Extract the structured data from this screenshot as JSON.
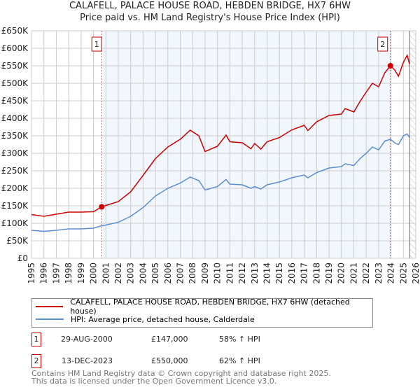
{
  "title": "CALAFELL, PALACE HOUSE ROAD, HEBDEN BRIDGE, HX7 6HW",
  "subtitle": "Price paid vs. HM Land Registry's House Price Index (HPI)",
  "chart_data": {
    "type": "line",
    "xlim": [
      1995,
      2026
    ],
    "ylim": [
      0,
      650000
    ],
    "y_ticks": [
      0,
      50000,
      100000,
      150000,
      200000,
      250000,
      300000,
      350000,
      400000,
      450000,
      500000,
      550000,
      600000,
      650000
    ],
    "y_tick_labels": [
      "£0",
      "£50K",
      "£100K",
      "£150K",
      "£200K",
      "£250K",
      "£300K",
      "£350K",
      "£400K",
      "£450K",
      "£500K",
      "£550K",
      "£600K",
      "£650K"
    ],
    "x_tick_labels": [
      "1995",
      "1996",
      "1997",
      "1998",
      "1999",
      "2000",
      "2001",
      "2002",
      "2003",
      "2004",
      "2005",
      "2006",
      "2007",
      "2008",
      "2009",
      "2010",
      "2011",
      "2012",
      "2013",
      "2014",
      "2015",
      "2016",
      "2017",
      "2018",
      "2019",
      "2020",
      "2021",
      "2022",
      "2023",
      "2024",
      "2025",
      "2026"
    ],
    "grid": true,
    "shaded_range": [
      2000.66,
      2024
    ],
    "hatched_from": 2025.5,
    "series": [
      {
        "name": "CALAFELL, PALACE HOUSE ROAD, HEBDEN BRIDGE, HX7 6HW (detached house)",
        "color": "#cc0000",
        "x": [
          1995,
          1996,
          1997,
          1998,
          1999,
          2000,
          2000.66,
          2001,
          2002,
          2003,
          2004,
          2005,
          2006,
          2007,
          2007.8,
          2008.5,
          2009,
          2010,
          2010.7,
          2011,
          2012,
          2012.7,
          2013,
          2013.5,
          2014,
          2015,
          2016,
          2017,
          2017.3,
          2018,
          2019,
          2020,
          2020.3,
          2021,
          2021.5,
          2022,
          2022.5,
          2023,
          2023.5,
          2023.95,
          2024.3,
          2024.6,
          2025,
          2025.3,
          2025.5
        ],
        "y": [
          125000,
          120000,
          126000,
          132000,
          132000,
          133000,
          147000,
          151000,
          162000,
          190000,
          237000,
          285000,
          318000,
          340000,
          366000,
          350000,
          305000,
          320000,
          352000,
          333000,
          330000,
          313000,
          328000,
          312000,
          333000,
          345000,
          367000,
          380000,
          365000,
          390000,
          408000,
          412000,
          428000,
          418000,
          448000,
          475000,
          500000,
          490000,
          530000,
          550000,
          538000,
          520000,
          560000,
          580000,
          555000
        ]
      },
      {
        "name": "HPI: Average price, detached house, Calderdale",
        "color": "#5b8fd0",
        "x": [
          1995,
          1996,
          1997,
          1998,
          1999,
          2000,
          2000.66,
          2001,
          2002,
          2003,
          2004,
          2005,
          2006,
          2007,
          2007.8,
          2008.5,
          2009,
          2010,
          2010.7,
          2011,
          2012,
          2012.7,
          2013,
          2013.5,
          2014,
          2015,
          2016,
          2017,
          2017.3,
          2018,
          2019,
          2020,
          2020.3,
          2021,
          2021.5,
          2022,
          2022.5,
          2023,
          2023.5,
          2023.95,
          2024.3,
          2024.6,
          2025,
          2025.3,
          2025.5
        ],
        "y": [
          80000,
          77000,
          80000,
          84000,
          84000,
          86000,
          93000,
          95000,
          103000,
          120000,
          145000,
          178000,
          200000,
          215000,
          232000,
          222000,
          195000,
          205000,
          225000,
          212000,
          210000,
          200000,
          205000,
          198000,
          210000,
          218000,
          230000,
          238000,
          230000,
          245000,
          258000,
          262000,
          270000,
          265000,
          285000,
          300000,
          318000,
          310000,
          335000,
          340000,
          330000,
          325000,
          350000,
          355000,
          345000
        ]
      }
    ],
    "sales": [
      {
        "label": "1",
        "x": 2000.66,
        "y": 147000
      },
      {
        "label": "2",
        "x": 2023.95,
        "y": 550000
      }
    ]
  },
  "legend": {
    "red": "CALAFELL, PALACE HOUSE ROAD, HEBDEN BRIDGE, HX7 6HW (detached house)",
    "blue": "HPI: Average price, detached house, Calderdale"
  },
  "sales_table": [
    {
      "num": "1",
      "date": "29-AUG-2000",
      "price": "£147,000",
      "hpi": "58% ↑ HPI"
    },
    {
      "num": "2",
      "date": "13-DEC-2023",
      "price": "£550,000",
      "hpi": "62% ↑ HPI"
    }
  ],
  "footer": {
    "line1": "Contains HM Land Registry data © Crown copyright and database right 2025.",
    "line2": "This data is licensed under the Open Government Licence v3.0."
  }
}
